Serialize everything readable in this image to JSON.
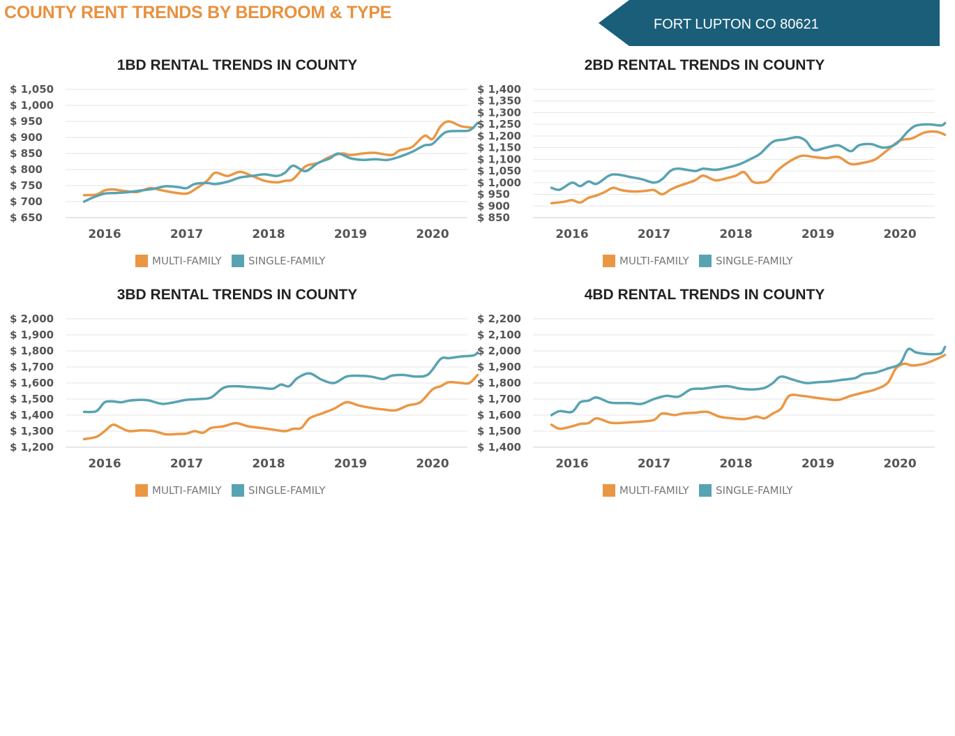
{
  "header": {
    "title": "COUNTY RENT TRENDS BY BEDROOM & TYPE",
    "location": "FORT LUPTON CO 80621"
  },
  "colors": {
    "multi_family": "#ea9744",
    "single_family": "#58a3b2",
    "title": "#e8913f",
    "banner": "#1b5e79"
  },
  "chart_data": [
    {
      "type": "line",
      "title": "1BD RENTAL TRENDS IN COUNTY",
      "xlabel": "",
      "ylabel": "",
      "x_ticks": [
        "2016",
        "2017",
        "2018",
        "2019",
        "2020"
      ],
      "y_ticks": [
        "$ 1,050",
        "$ 1,000",
        "$ 950",
        "$ 900",
        "$ 850",
        "$ 800",
        "$ 750",
        "$ 700",
        "$ 650"
      ],
      "ylim": [
        650,
        1050
      ],
      "xlim": [
        2015.5,
        2020.6
      ],
      "grid": true,
      "legend": "bottom",
      "series": [
        {
          "name": "MULTI-FAMILY",
          "color_key": "multi_family",
          "x": [
            2015.75,
            2015.9,
            2016.0,
            2016.1,
            2016.25,
            2016.4,
            2016.55,
            2016.7,
            2016.85,
            2017.0,
            2017.1,
            2017.25,
            2017.35,
            2017.5,
            2017.65,
            2017.8,
            2017.95,
            2018.1,
            2018.2,
            2018.3,
            2018.45,
            2018.6,
            2018.75,
            2018.9,
            2019.0,
            2019.15,
            2019.3,
            2019.5,
            2019.6,
            2019.75,
            2019.9,
            2020.0,
            2020.1,
            2020.2,
            2020.35,
            2020.5
          ],
          "y": [
            720,
            722,
            735,
            738,
            733,
            730,
            742,
            735,
            728,
            725,
            738,
            765,
            790,
            780,
            793,
            780,
            765,
            760,
            765,
            770,
            810,
            820,
            840,
            850,
            845,
            850,
            852,
            845,
            860,
            870,
            905,
            895,
            935,
            950,
            935,
            930
          ]
        },
        {
          "name": "SINGLE-FAMILY",
          "color_key": "single_family",
          "x": [
            2015.75,
            2015.85,
            2016.0,
            2016.15,
            2016.3,
            2016.45,
            2016.6,
            2016.75,
            2016.9,
            2017.0,
            2017.1,
            2017.25,
            2017.35,
            2017.5,
            2017.65,
            2017.8,
            2017.95,
            2018.1,
            2018.2,
            2018.3,
            2018.45,
            2018.6,
            2018.75,
            2018.85,
            2019.0,
            2019.15,
            2019.3,
            2019.45,
            2019.6,
            2019.75,
            2019.9,
            2020.0,
            2020.15,
            2020.3,
            2020.45,
            2020.55
          ],
          "y": [
            700,
            712,
            725,
            727,
            730,
            735,
            740,
            748,
            745,
            742,
            755,
            758,
            755,
            762,
            775,
            780,
            785,
            780,
            790,
            812,
            795,
            820,
            835,
            850,
            835,
            830,
            832,
            830,
            840,
            855,
            875,
            880,
            915,
            920,
            922,
            945
          ]
        }
      ]
    },
    {
      "type": "line",
      "title": "2BD RENTAL TRENDS IN COUNTY",
      "xlabel": "",
      "ylabel": "",
      "x_ticks": [
        "2016",
        "2017",
        "2018",
        "2019",
        "2020"
      ],
      "y_ticks": [
        "$ 1,400",
        "$ 1,350",
        "$ 1,300",
        "$ 1,250",
        "$ 1,200",
        "$ 1,150",
        "$ 1,100",
        "$ 1,050",
        "$ 1,000",
        "$ 950",
        "$ 900",
        "$ 850"
      ],
      "ylim": [
        850,
        1400
      ],
      "xlim": [
        2015.5,
        2020.6
      ],
      "grid": true,
      "legend": "bottom",
      "series": [
        {
          "name": "MULTI-FAMILY",
          "color_key": "multi_family",
          "x": [
            2015.75,
            2015.9,
            2016.0,
            2016.1,
            2016.2,
            2016.3,
            2016.4,
            2016.5,
            2016.6,
            2016.75,
            2016.9,
            2017.0,
            2017.1,
            2017.2,
            2017.3,
            2017.5,
            2017.6,
            2017.75,
            2017.9,
            2018.0,
            2018.1,
            2018.2,
            2018.3,
            2018.4,
            2018.5,
            2018.65,
            2018.8,
            2018.95,
            2019.1,
            2019.25,
            2019.4,
            2019.55,
            2019.7,
            2019.85,
            2020.0,
            2020.15,
            2020.3,
            2020.45,
            2020.55
          ],
          "y": [
            912,
            918,
            925,
            915,
            935,
            945,
            960,
            978,
            968,
            962,
            965,
            968,
            950,
            970,
            985,
            1010,
            1030,
            1010,
            1020,
            1030,
            1045,
            1005,
            1000,
            1010,
            1050,
            1090,
            1115,
            1110,
            1105,
            1110,
            1080,
            1085,
            1100,
            1140,
            1180,
            1190,
            1215,
            1218,
            1205
          ]
        },
        {
          "name": "SINGLE-FAMILY",
          "color_key": "single_family",
          "x": [
            2015.75,
            2015.85,
            2016.0,
            2016.1,
            2016.2,
            2016.3,
            2016.45,
            2016.55,
            2016.7,
            2016.85,
            2017.0,
            2017.1,
            2017.2,
            2017.3,
            2017.5,
            2017.6,
            2017.75,
            2017.9,
            2018.05,
            2018.2,
            2018.3,
            2018.45,
            2018.6,
            2018.75,
            2018.85,
            2018.95,
            2019.1,
            2019.25,
            2019.4,
            2019.5,
            2019.65,
            2019.8,
            2019.95,
            2020.1,
            2020.2,
            2020.35,
            2020.5,
            2020.55
          ],
          "y": [
            978,
            970,
            1000,
            985,
            1005,
            995,
            1030,
            1035,
            1025,
            1015,
            1000,
            1015,
            1050,
            1060,
            1050,
            1060,
            1055,
            1065,
            1080,
            1105,
            1125,
            1175,
            1185,
            1195,
            1180,
            1140,
            1150,
            1160,
            1135,
            1160,
            1165,
            1150,
            1165,
            1220,
            1245,
            1250,
            1245,
            1255
          ]
        }
      ]
    },
    {
      "type": "line",
      "title": "3BD RENTAL TRENDS IN COUNTY",
      "xlabel": "",
      "ylabel": "",
      "x_ticks": [
        "2016",
        "2017",
        "2018",
        "2019",
        "2020"
      ],
      "y_ticks": [
        "$ 2,000",
        "$ 1,900",
        "$ 1,800",
        "$ 1,700",
        "$ 1,600",
        "$ 1,500",
        "$ 1,400",
        "$ 1,300",
        "$ 1,200"
      ],
      "ylim": [
        1200,
        2000
      ],
      "xlim": [
        2015.5,
        2020.6
      ],
      "grid": true,
      "legend": "bottom",
      "series": [
        {
          "name": "MULTI-FAMILY",
          "color_key": "multi_family",
          "x": [
            2015.75,
            2015.9,
            2016.0,
            2016.1,
            2016.2,
            2016.3,
            2016.45,
            2016.6,
            2016.75,
            2016.9,
            2017.0,
            2017.1,
            2017.2,
            2017.3,
            2017.45,
            2017.6,
            2017.75,
            2017.9,
            2018.05,
            2018.2,
            2018.3,
            2018.4,
            2018.5,
            2018.65,
            2018.8,
            2018.95,
            2019.1,
            2019.25,
            2019.4,
            2019.55,
            2019.7,
            2019.85,
            2020.0,
            2020.1,
            2020.2,
            2020.35,
            2020.45,
            2020.55
          ],
          "y": [
            1250,
            1265,
            1300,
            1340,
            1320,
            1300,
            1305,
            1300,
            1280,
            1282,
            1285,
            1300,
            1290,
            1320,
            1330,
            1350,
            1330,
            1320,
            1310,
            1300,
            1315,
            1320,
            1380,
            1410,
            1440,
            1480,
            1460,
            1445,
            1435,
            1430,
            1460,
            1480,
            1560,
            1580,
            1605,
            1600,
            1600,
            1650
          ]
        },
        {
          "name": "SINGLE-FAMILY",
          "color_key": "single_family",
          "x": [
            2015.75,
            2015.9,
            2016.0,
            2016.1,
            2016.2,
            2016.3,
            2016.45,
            2016.55,
            2016.7,
            2016.85,
            2017.0,
            2017.15,
            2017.3,
            2017.45,
            2017.6,
            2017.75,
            2017.9,
            2018.05,
            2018.15,
            2018.25,
            2018.35,
            2018.5,
            2018.65,
            2018.8,
            2018.95,
            2019.1,
            2019.25,
            2019.4,
            2019.5,
            2019.65,
            2019.8,
            2019.95,
            2020.1,
            2020.2,
            2020.35,
            2020.5,
            2020.55
          ],
          "y": [
            1420,
            1425,
            1480,
            1485,
            1480,
            1490,
            1495,
            1490,
            1470,
            1480,
            1495,
            1500,
            1510,
            1570,
            1580,
            1575,
            1570,
            1565,
            1590,
            1580,
            1630,
            1660,
            1620,
            1600,
            1640,
            1645,
            1640,
            1625,
            1645,
            1650,
            1640,
            1655,
            1750,
            1755,
            1765,
            1772,
            1790
          ]
        }
      ]
    },
    {
      "type": "line",
      "title": "4BD RENTAL TRENDS IN COUNTY",
      "xlabel": "",
      "ylabel": "",
      "x_ticks": [
        "2016",
        "2017",
        "2018",
        "2019",
        "2020"
      ],
      "y_ticks": [
        "$ 2,200",
        "$ 2,100",
        "$ 2,000",
        "$ 1,900",
        "$ 1,800",
        "$ 1,700",
        "$ 1,600",
        "$ 1,500",
        "$ 1,400"
      ],
      "ylim": [
        1400,
        2200
      ],
      "xlim": [
        2015.5,
        2020.6
      ],
      "grid": true,
      "legend": "bottom",
      "series": [
        {
          "name": "MULTI-FAMILY",
          "color_key": "multi_family",
          "x": [
            2015.75,
            2015.85,
            2016.0,
            2016.1,
            2016.2,
            2016.3,
            2016.45,
            2016.55,
            2016.7,
            2016.85,
            2017.0,
            2017.1,
            2017.25,
            2017.35,
            2017.5,
            2017.65,
            2017.8,
            2017.95,
            2018.1,
            2018.25,
            2018.35,
            2018.45,
            2018.55,
            2018.65,
            2018.8,
            2018.95,
            2019.1,
            2019.25,
            2019.4,
            2019.55,
            2019.7,
            2019.85,
            2019.95,
            2020.05,
            2020.15,
            2020.3,
            2020.45,
            2020.55
          ],
          "y": [
            1540,
            1515,
            1530,
            1545,
            1550,
            1580,
            1555,
            1550,
            1555,
            1560,
            1570,
            1610,
            1600,
            1610,
            1615,
            1620,
            1590,
            1580,
            1575,
            1590,
            1580,
            1610,
            1640,
            1720,
            1720,
            1710,
            1700,
            1695,
            1720,
            1740,
            1760,
            1800,
            1890,
            1920,
            1910,
            1920,
            1950,
            1975
          ]
        },
        {
          "name": "SINGLE-FAMILY",
          "color_key": "single_family",
          "x": [
            2015.75,
            2015.85,
            2016.0,
            2016.1,
            2016.2,
            2016.3,
            2016.45,
            2016.55,
            2016.7,
            2016.85,
            2017.0,
            2017.15,
            2017.3,
            2017.45,
            2017.6,
            2017.75,
            2017.9,
            2018.05,
            2018.2,
            2018.35,
            2018.45,
            2018.55,
            2018.7,
            2018.85,
            2019.0,
            2019.15,
            2019.3,
            2019.45,
            2019.55,
            2019.7,
            2019.85,
            2020.0,
            2020.1,
            2020.2,
            2020.35,
            2020.5,
            2020.55
          ],
          "y": [
            1600,
            1625,
            1620,
            1680,
            1690,
            1710,
            1680,
            1675,
            1675,
            1670,
            1700,
            1720,
            1715,
            1760,
            1765,
            1775,
            1780,
            1765,
            1760,
            1770,
            1800,
            1840,
            1820,
            1800,
            1805,
            1810,
            1820,
            1830,
            1855,
            1865,
            1890,
            1920,
            2010,
            1990,
            1980,
            1985,
            2025
          ]
        }
      ]
    }
  ]
}
